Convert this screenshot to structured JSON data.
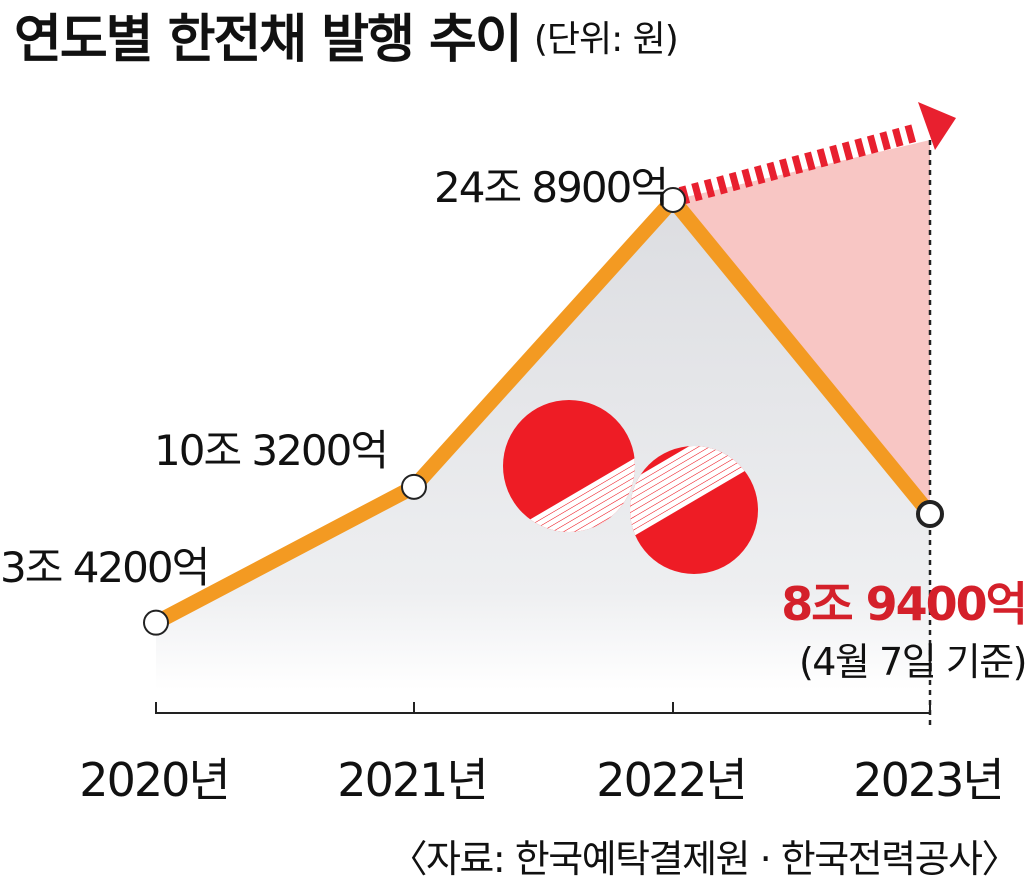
{
  "chart_data": {
    "type": "line",
    "title": "연도별 한전채 발행 추이",
    "unit_note": "(단위: 원)",
    "categories": [
      "2020년",
      "2021년",
      "2022년",
      "2023년"
    ],
    "series": [
      {
        "values": [
          34200,
          103200,
          248900,
          89400
        ],
        "data_labels": [
          "3조 4200억",
          "10조 3200억",
          "24조 8900억",
          "8조 9400억"
        ]
      }
    ],
    "value_unit": "억 원",
    "highlight_note": "(4월 7일 기준)",
    "ylim": [
      0,
      320000
    ],
    "grid": false,
    "colors": {
      "line": "#f39a22",
      "area": "#e4e5e8",
      "projection": "#e8202f",
      "projection_fill": "#f8c6c4",
      "highlight_label": "#d4202a"
    }
  },
  "source": "〈자료: 한국예탁결제원 · 한국전력공사〉",
  "logo_name": "kepco-logo"
}
